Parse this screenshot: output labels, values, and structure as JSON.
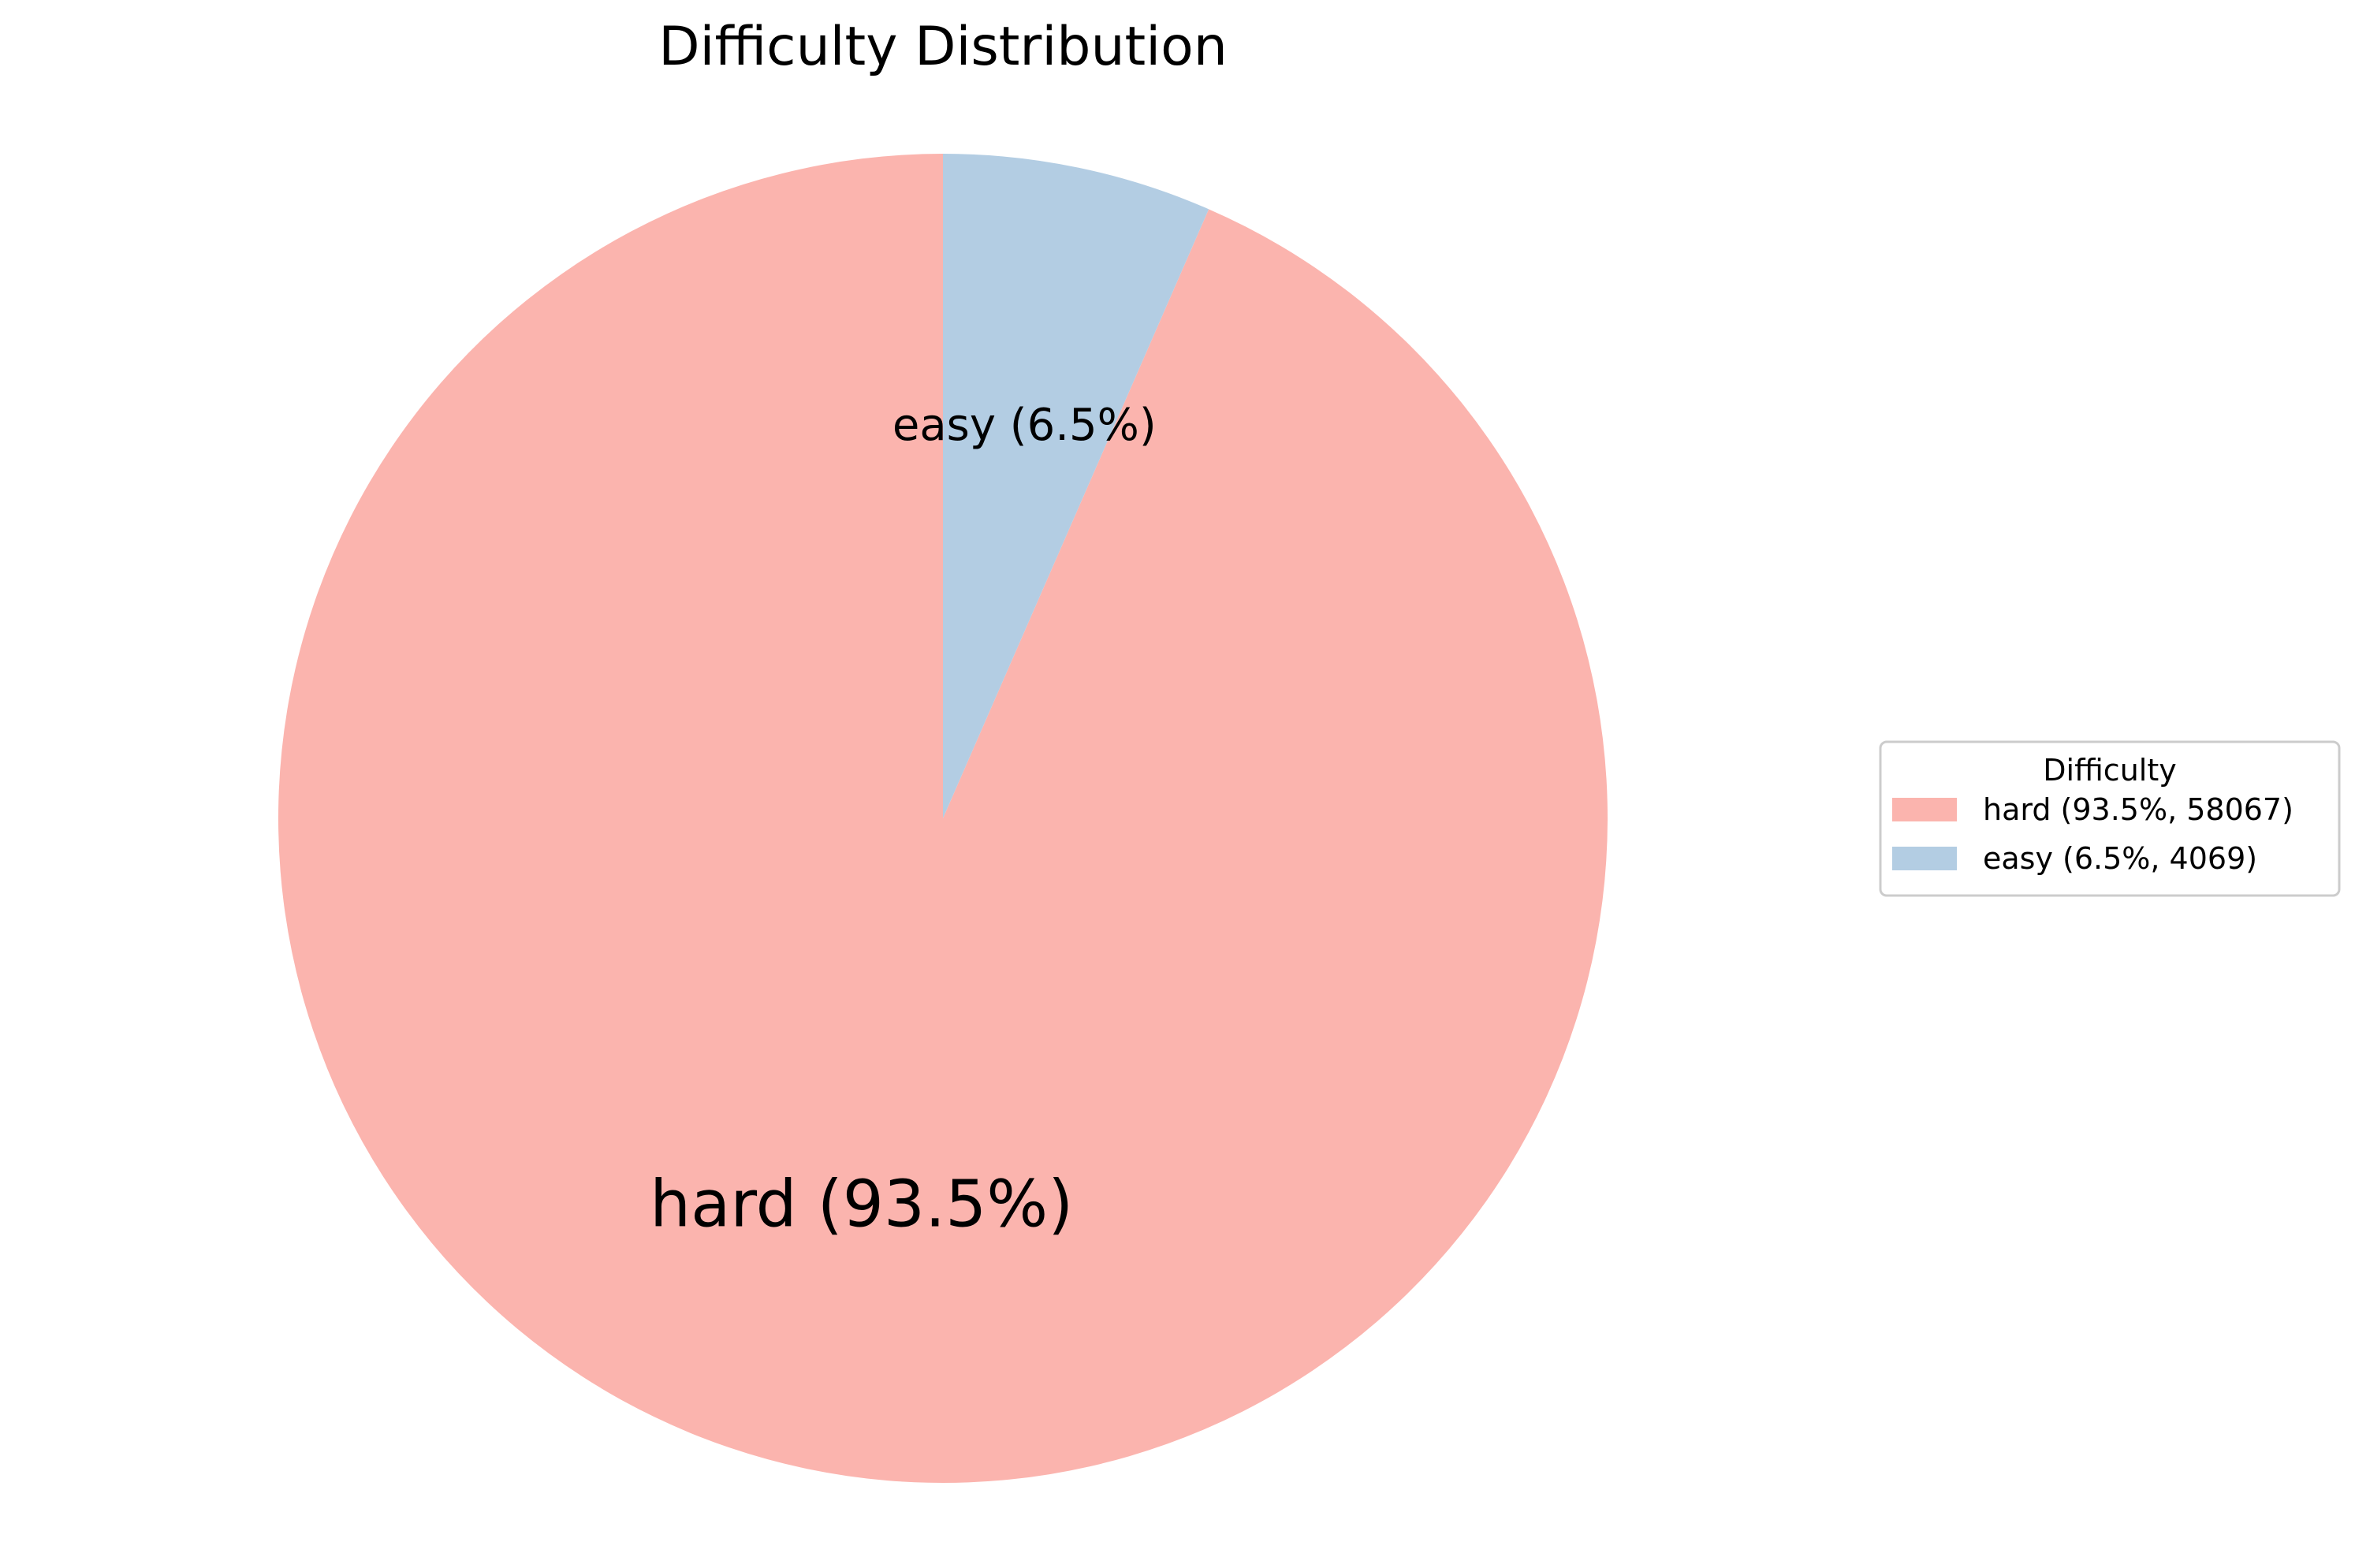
{
  "chart_data": {
    "type": "pie",
    "title": "Difficulty Distribution",
    "slices": [
      {
        "name": "hard",
        "value": 58067,
        "percent": 93.5,
        "color": "#fbb4ae",
        "label": "hard (93.5%)",
        "legend_label": "hard (93.5%, 58067)"
      },
      {
        "name": "easy",
        "value": 4069,
        "percent": 6.5,
        "color": "#b3cde3",
        "label": "easy (6.5%)",
        "legend_label": "easy (6.5%, 4069)"
      }
    ],
    "start_angle_deg": 90,
    "direction": "counterclockwise",
    "legend": {
      "title": "Difficulty",
      "placement": "center-right"
    }
  }
}
